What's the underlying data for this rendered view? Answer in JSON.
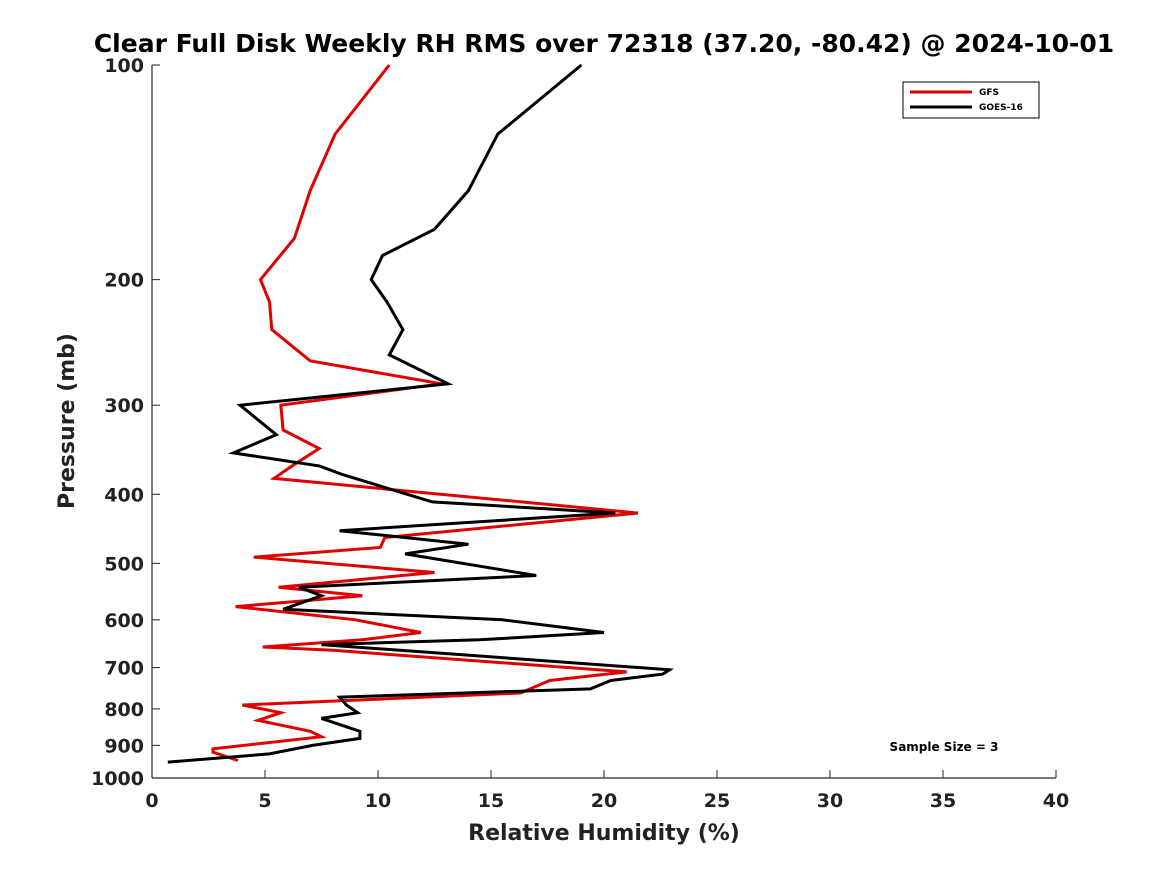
{
  "chart_data": {
    "type": "line",
    "title": "Clear Full Disk Weekly RH RMS over 72318 (37.20, -80.42) @ 2024-10-01",
    "xlabel": "Relative Humidity (%)",
    "ylabel": "Pressure (mb)",
    "xlim": [
      0,
      40
    ],
    "ylim": [
      100,
      1000
    ],
    "y_scale": "log",
    "y_reversed": true,
    "xticks": [
      0,
      5,
      10,
      15,
      20,
      25,
      30,
      35,
      40
    ],
    "yticks": [
      100,
      200,
      300,
      400,
      500,
      600,
      700,
      800,
      900,
      1000
    ],
    "grid": false,
    "legend_position": "top-right",
    "annotation": "Sample Size = 3",
    "series": [
      {
        "name": "GFS",
        "color": "#e00000",
        "points": [
          [
            10.5,
            100
          ],
          [
            8.1,
            125
          ],
          [
            7.0,
            150
          ],
          [
            6.3,
            175
          ],
          [
            4.8,
            200
          ],
          [
            5.2,
            215
          ],
          [
            5.3,
            235
          ],
          [
            7.0,
            260
          ],
          [
            12.8,
            280
          ],
          [
            5.7,
            300
          ],
          [
            5.8,
            325
          ],
          [
            7.4,
            345
          ],
          [
            6.2,
            365
          ],
          [
            5.4,
            380
          ],
          [
            21.5,
            425
          ],
          [
            10.3,
            460
          ],
          [
            10.1,
            475
          ],
          [
            4.5,
            490
          ],
          [
            12.5,
            515
          ],
          [
            5.6,
            540
          ],
          [
            9.3,
            555
          ],
          [
            6.5,
            565
          ],
          [
            3.7,
            575
          ],
          [
            9.0,
            600
          ],
          [
            11.9,
            625
          ],
          [
            9.3,
            640
          ],
          [
            4.9,
            655
          ],
          [
            8.0,
            662
          ],
          [
            21.0,
            710
          ],
          [
            17.6,
            730
          ],
          [
            16.3,
            760
          ],
          [
            4.0,
            790
          ],
          [
            5.7,
            810
          ],
          [
            4.7,
            830
          ],
          [
            7.0,
            860
          ],
          [
            7.5,
            875
          ],
          [
            2.7,
            910
          ],
          [
            2.7,
            920
          ],
          [
            3.8,
            945
          ]
        ]
      },
      {
        "name": "GOES-16",
        "color": "#000000",
        "points": [
          [
            19.0,
            100
          ],
          [
            15.3,
            125
          ],
          [
            14.0,
            150
          ],
          [
            12.5,
            170
          ],
          [
            10.2,
            185
          ],
          [
            9.7,
            200
          ],
          [
            10.4,
            215
          ],
          [
            11.1,
            235
          ],
          [
            10.5,
            255
          ],
          [
            13.1,
            280
          ],
          [
            3.9,
            300
          ],
          [
            5.5,
            330
          ],
          [
            3.6,
            350
          ],
          [
            7.4,
            365
          ],
          [
            8.4,
            375
          ],
          [
            12.4,
            410
          ],
          [
            20.5,
            425
          ],
          [
            8.3,
            450
          ],
          [
            14.0,
            470
          ],
          [
            11.2,
            485
          ],
          [
            17.0,
            520
          ],
          [
            6.5,
            540
          ],
          [
            7.5,
            555
          ],
          [
            5.8,
            580
          ],
          [
            15.5,
            600
          ],
          [
            20.0,
            625
          ],
          [
            14.5,
            640
          ],
          [
            7.5,
            650
          ],
          [
            22.9,
            705
          ],
          [
            22.6,
            715
          ],
          [
            20.3,
            730
          ],
          [
            19.4,
            750
          ],
          [
            8.3,
            770
          ],
          [
            8.6,
            790
          ],
          [
            9.1,
            810
          ],
          [
            7.5,
            825
          ],
          [
            9.2,
            860
          ],
          [
            9.2,
            880
          ],
          [
            7.1,
            900
          ],
          [
            5.2,
            925
          ],
          [
            0.7,
            950
          ]
        ]
      }
    ]
  }
}
